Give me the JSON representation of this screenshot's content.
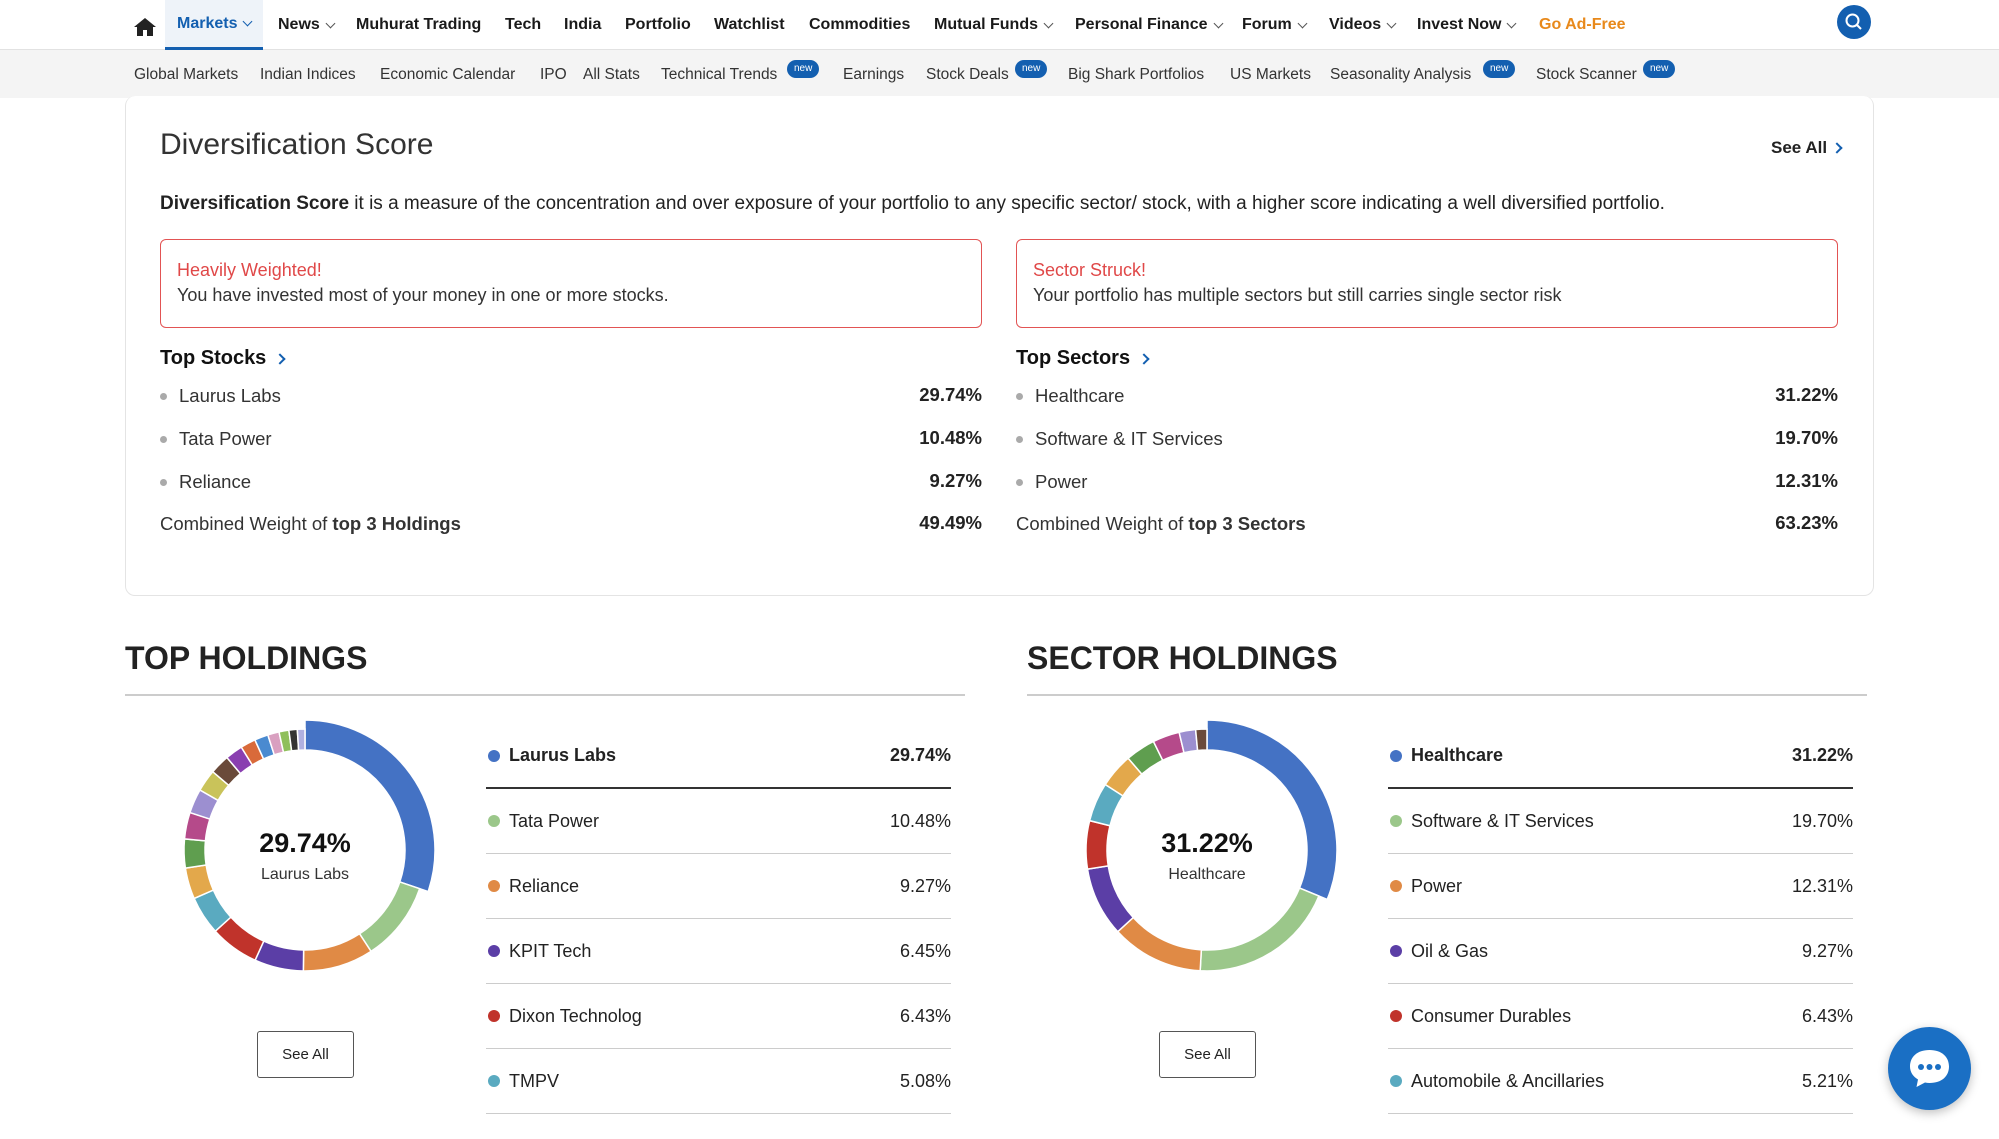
{
  "nav": {
    "items": [
      {
        "label": "Markets",
        "chevron": true,
        "active": true
      },
      {
        "label": "News",
        "chevron": true
      },
      {
        "label": "Muhurat Trading",
        "chevron": false
      },
      {
        "label": "Tech",
        "chevron": false
      },
      {
        "label": "India",
        "chevron": false
      },
      {
        "label": "Portfolio",
        "chevron": false
      },
      {
        "label": "Watchlist",
        "chevron": false
      },
      {
        "label": "Commodities",
        "chevron": false
      },
      {
        "label": "Mutual Funds",
        "chevron": true
      },
      {
        "label": "Personal Finance",
        "chevron": true
      },
      {
        "label": "Forum",
        "chevron": true
      },
      {
        "label": "Videos",
        "chevron": true
      },
      {
        "label": "Invest Now",
        "chevron": true
      },
      {
        "label": "Go Ad-Free",
        "chevron": false,
        "accent": true
      }
    ],
    "accent_color": "#135fb0",
    "adfree_color": "#e8891b"
  },
  "subnav": {
    "items": [
      {
        "label": "Global Markets"
      },
      {
        "label": "Indian Indices"
      },
      {
        "label": "Economic Calendar"
      },
      {
        "label": "IPO"
      },
      {
        "label": "All Stats"
      },
      {
        "label": "Technical Trends",
        "badge": "new"
      },
      {
        "label": "Earnings"
      },
      {
        "label": "Stock Deals",
        "badge": "new"
      },
      {
        "label": "Big Shark Portfolios"
      },
      {
        "label": "US Markets"
      },
      {
        "label": "Seasonality Analysis",
        "badge": "new"
      },
      {
        "label": "Stock Scanner",
        "badge": "new"
      }
    ]
  },
  "diversification": {
    "title": "Diversification Score",
    "see_all": "See All",
    "desc_bold": "Diversification Score",
    "desc_rest": " it is a measure of the concentration and over exposure of your portfolio to any specific sector/ stock, with a higher score indicating a well diversified portfolio.",
    "alert_left": {
      "title": "Heavily Weighted!",
      "text": "You have invested most of your money in one or more stocks."
    },
    "alert_right": {
      "title": "Sector Struck!",
      "text": "Your portfolio has multiple sectors but still carries single sector risk"
    },
    "top_stocks": {
      "heading": "Top Stocks",
      "rows": [
        {
          "name": "Laurus Labs",
          "value": "29.74%"
        },
        {
          "name": "Tata Power",
          "value": "10.48%"
        },
        {
          "name": "Reliance",
          "value": "9.27%"
        }
      ],
      "combined_prefix": "Combined Weight of ",
      "combined_bold": "top 3 Holdings",
      "combined_value": "49.49%"
    },
    "top_sectors": {
      "heading": "Top Sectors",
      "rows": [
        {
          "name": "Healthcare",
          "value": "31.22%"
        },
        {
          "name": "Software & IT Services",
          "value": "19.70%"
        },
        {
          "name": "Power",
          "value": "12.31%"
        }
      ],
      "combined_prefix": "Combined Weight of ",
      "combined_bold": "top 3 Sectors",
      "combined_value": "63.23%"
    }
  },
  "top_holdings": {
    "title": "TOP HOLDINGS",
    "center_value": "29.74%",
    "center_label": "Laurus Labs",
    "see_all": "See All",
    "legend": [
      {
        "name": "Laurus Labs",
        "value": "29.74%",
        "color": "#4472c4"
      },
      {
        "name": "Tata Power",
        "value": "10.48%",
        "color": "#9bc78a"
      },
      {
        "name": "Reliance",
        "value": "9.27%",
        "color": "#e08a45"
      },
      {
        "name": "KPIT Tech",
        "value": "6.45%",
        "color": "#5b3ea6"
      },
      {
        "name": "Dixon Technolog",
        "value": "6.43%",
        "color": "#c0332b"
      },
      {
        "name": "TMPV",
        "value": "5.08%",
        "color": "#5aaac0"
      }
    ]
  },
  "sector_holdings": {
    "title": "SECTOR HOLDINGS",
    "center_value": "31.22%",
    "center_label": "Healthcare",
    "see_all": "See All",
    "legend": [
      {
        "name": "Healthcare",
        "value": "31.22%",
        "color": "#4472c4"
      },
      {
        "name": "Software & IT Services",
        "value": "19.70%",
        "color": "#9bc78a"
      },
      {
        "name": "Power",
        "value": "12.31%",
        "color": "#e08a45"
      },
      {
        "name": "Oil & Gas",
        "value": "9.27%",
        "color": "#5b3ea6"
      },
      {
        "name": "Consumer Durables",
        "value": "6.43%",
        "color": "#c0332b"
      },
      {
        "name": "Automobile & Ancillaries",
        "value": "5.21%",
        "color": "#5aaac0"
      }
    ]
  },
  "chart_data": [
    {
      "type": "pie",
      "title": "TOP HOLDINGS",
      "categories": [
        "Laurus Labs",
        "Tata Power",
        "Reliance",
        "KPIT Tech",
        "Dixon Technolog",
        "TMPV",
        "",
        "",
        "",
        "",
        "",
        "",
        "",
        "",
        "",
        "",
        "",
        "",
        ""
      ],
      "values": [
        29.74,
        10.48,
        9.27,
        6.45,
        6.43,
        5.08,
        4.1,
        3.8,
        3.5,
        3.2,
        2.9,
        2.6,
        2.3,
        2.0,
        1.8,
        1.5,
        1.3,
        1.1,
        1.0
      ],
      "colors": [
        "#4472c4",
        "#9bc78a",
        "#e08a45",
        "#5b3ea6",
        "#c0332b",
        "#5aaac0",
        "#e3a84b",
        "#5f9e4f",
        "#b54a8a",
        "#9c8fd0",
        "#c9c35a",
        "#6a4a3a",
        "#8a3fb0",
        "#d96a3a",
        "#4a8ad0",
        "#d9a0c0",
        "#8fbf5a",
        "#333333",
        "#b0b0e0"
      ]
    },
    {
      "type": "pie",
      "title": "SECTOR HOLDINGS",
      "categories": [
        "Healthcare",
        "Software & IT Services",
        "Power",
        "Oil & Gas",
        "Consumer Durables",
        "Automobile & Ancillaries",
        "",
        "",
        "",
        "",
        ""
      ],
      "values": [
        31.22,
        19.7,
        12.31,
        9.27,
        6.43,
        5.21,
        4.6,
        4.0,
        3.6,
        2.2,
        1.5
      ],
      "colors": [
        "#4472c4",
        "#9bc78a",
        "#e08a45",
        "#5b3ea6",
        "#c0332b",
        "#5aaac0",
        "#e3a84b",
        "#5f9e4f",
        "#b54a8a",
        "#9c8fd0",
        "#6a4a3a"
      ]
    }
  ]
}
